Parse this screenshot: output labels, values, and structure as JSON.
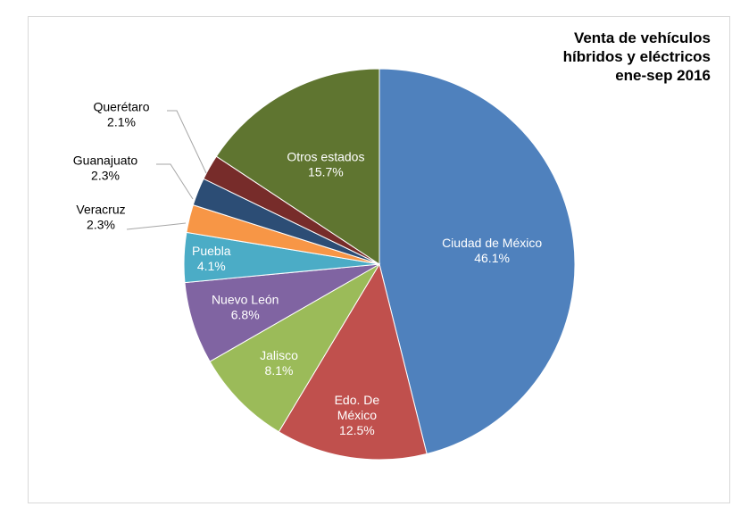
{
  "colors": {
    "frame_border": "#d9d9d9",
    "leader_line": "#a6a6a6"
  },
  "chart_data": {
    "type": "pie",
    "title": "Venta de vehículos\nhíbridos y eléctricos\nene-sep 2016",
    "unit": "%",
    "start_angle_deg": 0,
    "direction": "clockwise",
    "slices": [
      {
        "name": "Ciudad de México",
        "value": 46.1,
        "label": "46.1%",
        "color": "#4f81bd",
        "label_color": "#ffffff",
        "label_inside": true
      },
      {
        "name": "Edo. De México",
        "value": 12.5,
        "label": "12.5%",
        "color": "#c0504d",
        "label_color": "#ffffff",
        "label_inside": true
      },
      {
        "name": "Jalisco",
        "value": 8.1,
        "label": "8.1%",
        "color": "#9bbb59",
        "label_color": "#ffffff",
        "label_inside": true
      },
      {
        "name": "Nuevo León",
        "value": 6.8,
        "label": "6.8%",
        "color": "#8064a2",
        "label_color": "#ffffff",
        "label_inside": true
      },
      {
        "name": "Puebla",
        "value": 4.1,
        "label": "4.1%",
        "color": "#4bacc6",
        "label_color": "#ffffff",
        "label_inside": true
      },
      {
        "name": "Veracruz",
        "value": 2.3,
        "label": "2.3%",
        "color": "#f79646",
        "label_color": "#000000",
        "label_inside": false
      },
      {
        "name": "Guanajuato",
        "value": 2.3,
        "label": "2.3%",
        "color": "#2c4d75",
        "label_color": "#000000",
        "label_inside": false
      },
      {
        "name": "Querétaro",
        "value": 2.1,
        "label": "2.1%",
        "color": "#772c2a",
        "label_color": "#000000",
        "label_inside": false
      },
      {
        "name": "Otros estados",
        "value": 15.7,
        "label": "15.7%",
        "color": "#5f7530",
        "label_color": "#ffffff",
        "label_inside": true
      }
    ]
  }
}
